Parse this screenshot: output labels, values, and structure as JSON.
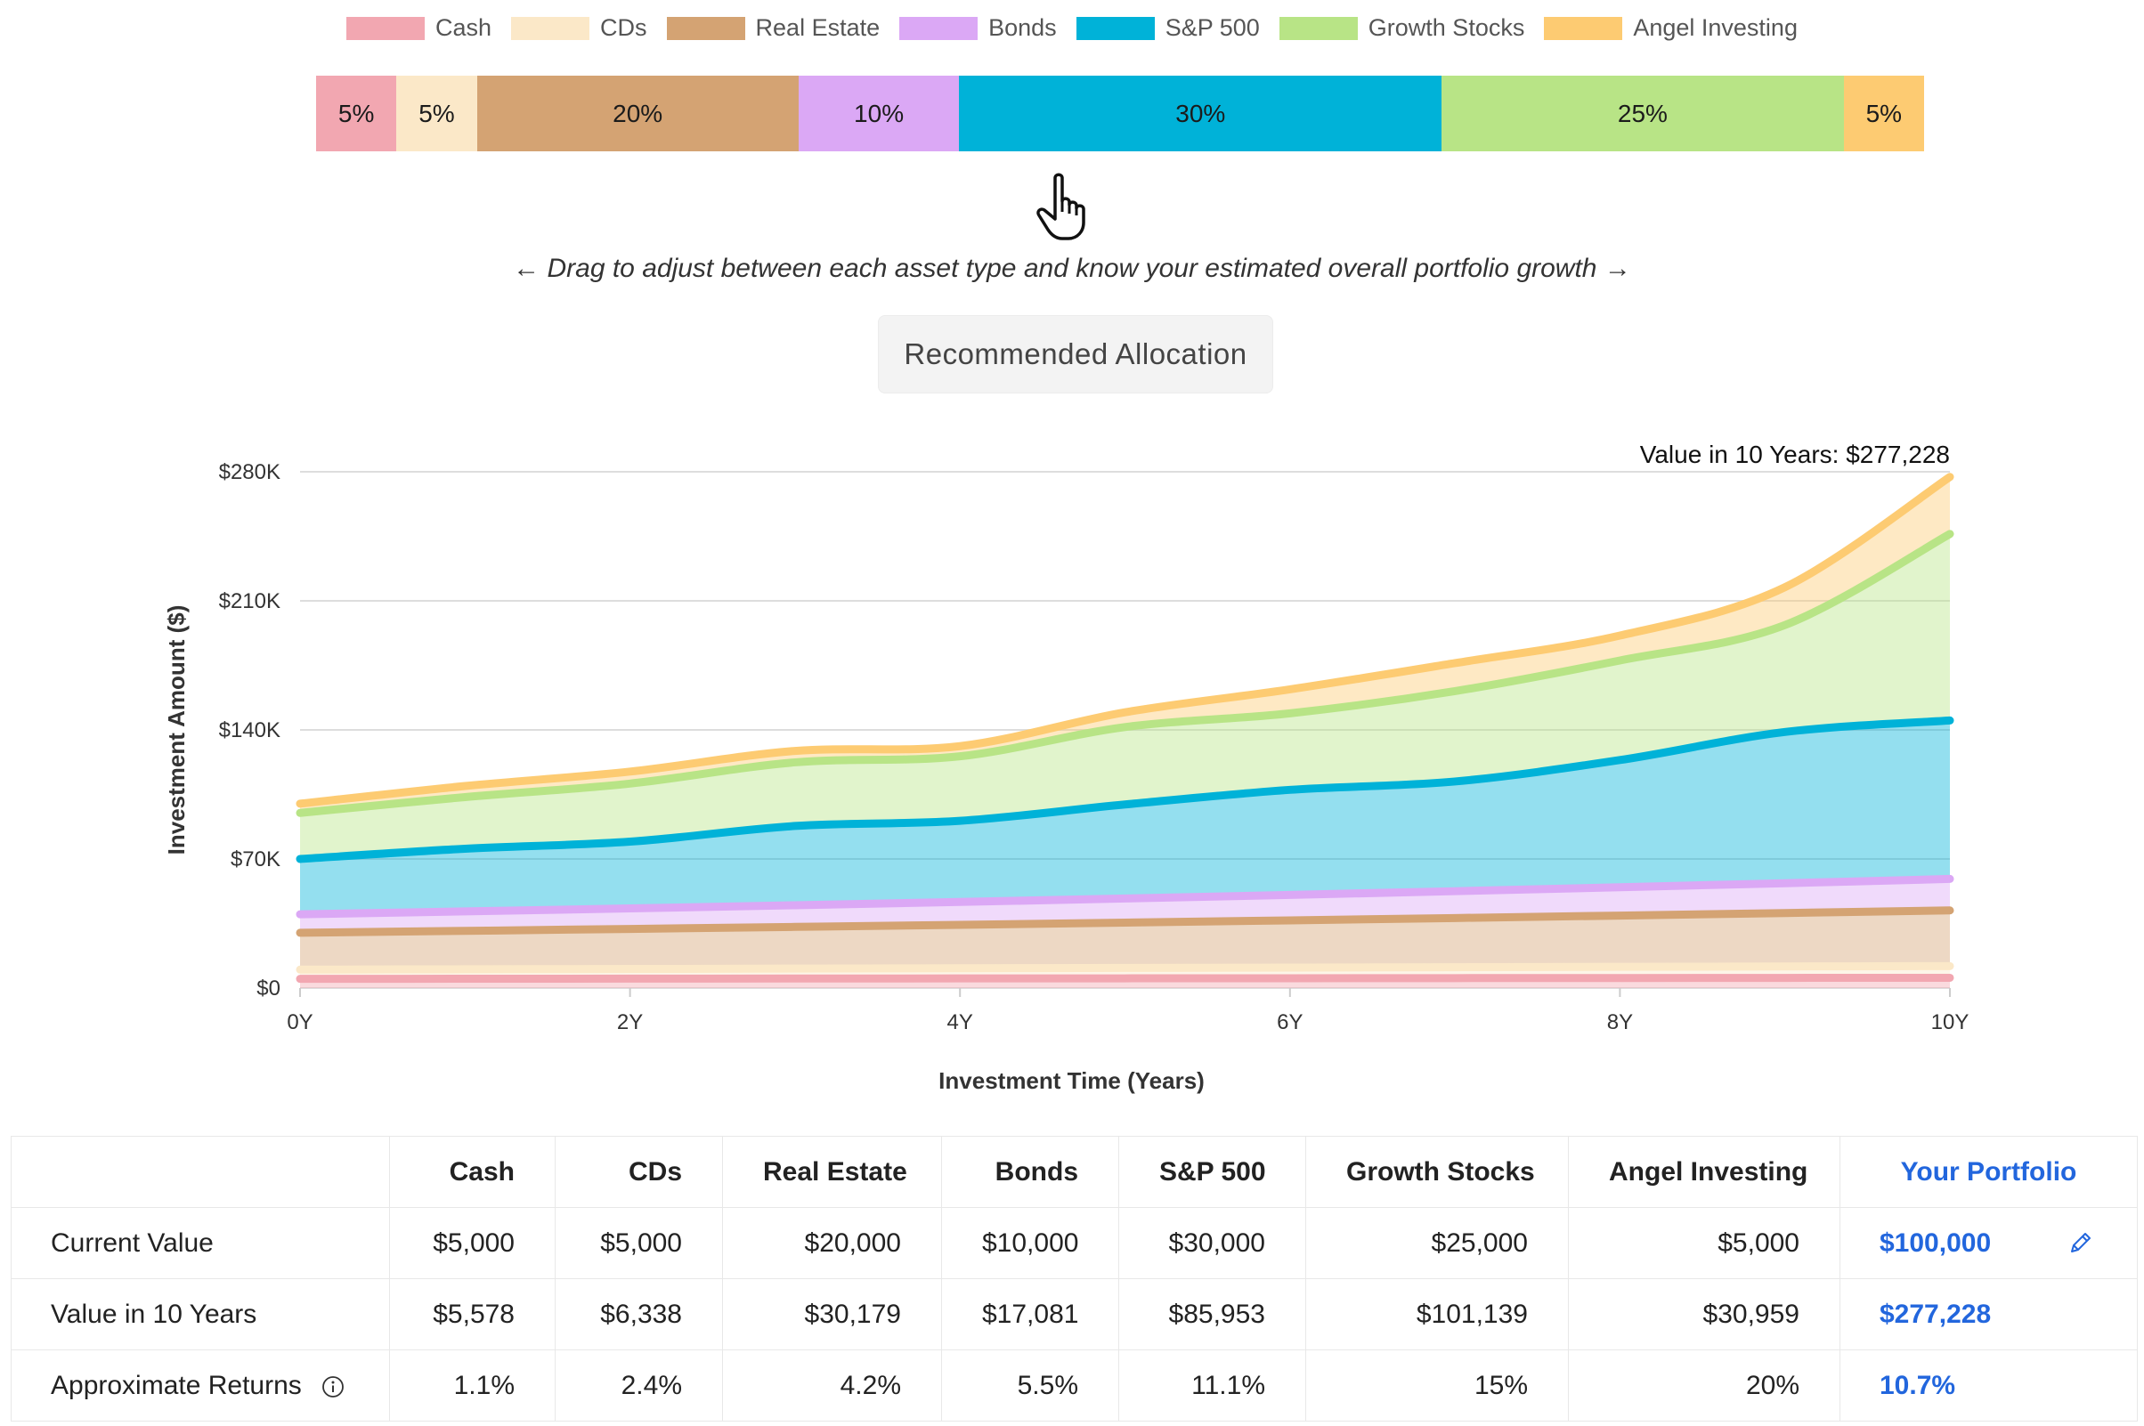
{
  "legend": [
    {
      "label": "Cash",
      "color": "#f2a7b1"
    },
    {
      "label": "CDs",
      "color": "#fbe8c8"
    },
    {
      "label": "Real Estate",
      "color": "#d4a373"
    },
    {
      "label": "Bonds",
      "color": "#dba8f5"
    },
    {
      "label": "S&P 500",
      "color": "#00b2d8"
    },
    {
      "label": "Growth Stocks",
      "color": "#b8e486"
    },
    {
      "label": "Angel Investing",
      "color": "#fdcb72"
    }
  ],
  "allocation": [
    {
      "label": "5%",
      "percent": 5
    },
    {
      "label": "5%",
      "percent": 5
    },
    {
      "label": "20%",
      "percent": 20
    },
    {
      "label": "10%",
      "percent": 10
    },
    {
      "label": "30%",
      "percent": 30
    },
    {
      "label": "25%",
      "percent": 25
    },
    {
      "label": "5%",
      "percent": 5
    }
  ],
  "drag_hint": "← Drag to adjust between each asset type and know your estimated overall portfolio growth →",
  "recommended_button": "Recommended Allocation",
  "chart_data": {
    "type": "area",
    "stacked": true,
    "annotation": "Value in 10 Years: $277,228",
    "xlabel": "Investment Time (Years)",
    "ylabel": "Investment Amount ($)",
    "x": [
      0,
      1,
      2,
      3,
      4,
      5,
      6,
      7,
      8,
      9,
      10
    ],
    "x_tick_labels": [
      "0Y",
      "2Y",
      "4Y",
      "6Y",
      "8Y",
      "10Y"
    ],
    "x_tick_values": [
      0,
      2,
      4,
      6,
      8,
      10
    ],
    "y_tick_labels": [
      "$0",
      "$70K",
      "$140K",
      "$210K",
      "$280K"
    ],
    "y_tick_values": [
      0,
      70000,
      140000,
      210000,
      280000
    ],
    "ylim": [
      0,
      280000
    ],
    "xlim": [
      0,
      10
    ],
    "grid": true,
    "series": [
      {
        "name": "Cash",
        "values": [
          5000,
          5060,
          5110,
          5170,
          5220,
          5280,
          5340,
          5400,
          5460,
          5520,
          5578
        ]
      },
      {
        "name": "CDs",
        "values": [
          5000,
          5120,
          5240,
          5370,
          5500,
          5630,
          5770,
          5900,
          6050,
          6190,
          6338
        ]
      },
      {
        "name": "Real Estate",
        "values": [
          20000,
          20840,
          21710,
          22630,
          23580,
          24570,
          25600,
          26680,
          27800,
          28970,
          30179
        ]
      },
      {
        "name": "Bonds",
        "values": [
          10000,
          10550,
          11130,
          11740,
          12390,
          13070,
          13790,
          14550,
          15350,
          16190,
          17081
        ]
      },
      {
        "name": "S&P 500",
        "values": [
          30000,
          34000,
          36200,
          43000,
          44000,
          51000,
          57000,
          59500,
          69000,
          82000,
          85953
        ]
      },
      {
        "name": "Growth Stocks",
        "values": [
          25000,
          28000,
          31500,
          34500,
          35000,
          42000,
          41500,
          49000,
          54000,
          58000,
          101139
        ]
      },
      {
        "name": "Angel Investing",
        "values": [
          5000,
          6000,
          6500,
          6200,
          5500,
          8000,
          13000,
          15200,
          13500,
          20500,
          30959
        ]
      }
    ]
  },
  "table": {
    "headers": [
      "",
      "Cash",
      "CDs",
      "Real Estate",
      "Bonds",
      "S&P 500",
      "Growth Stocks",
      "Angel Investing",
      "Your Portfolio"
    ],
    "rows": [
      {
        "label": "Current Value",
        "values": [
          "$5,000",
          "$5,000",
          "$20,000",
          "$10,000",
          "$30,000",
          "$25,000",
          "$5,000"
        ],
        "portfolio": "$100,000"
      },
      {
        "label": "Value in 10 Years",
        "values": [
          "$5,578",
          "$6,338",
          "$30,179",
          "$17,081",
          "$85,953",
          "$101,139",
          "$30,959"
        ],
        "portfolio": "$277,228"
      },
      {
        "label": "Approximate Returns",
        "values": [
          "1.1%",
          "2.4%",
          "4.2%",
          "5.5%",
          "11.1%",
          "15%",
          "20%"
        ],
        "portfolio": "10.7%"
      }
    ]
  }
}
